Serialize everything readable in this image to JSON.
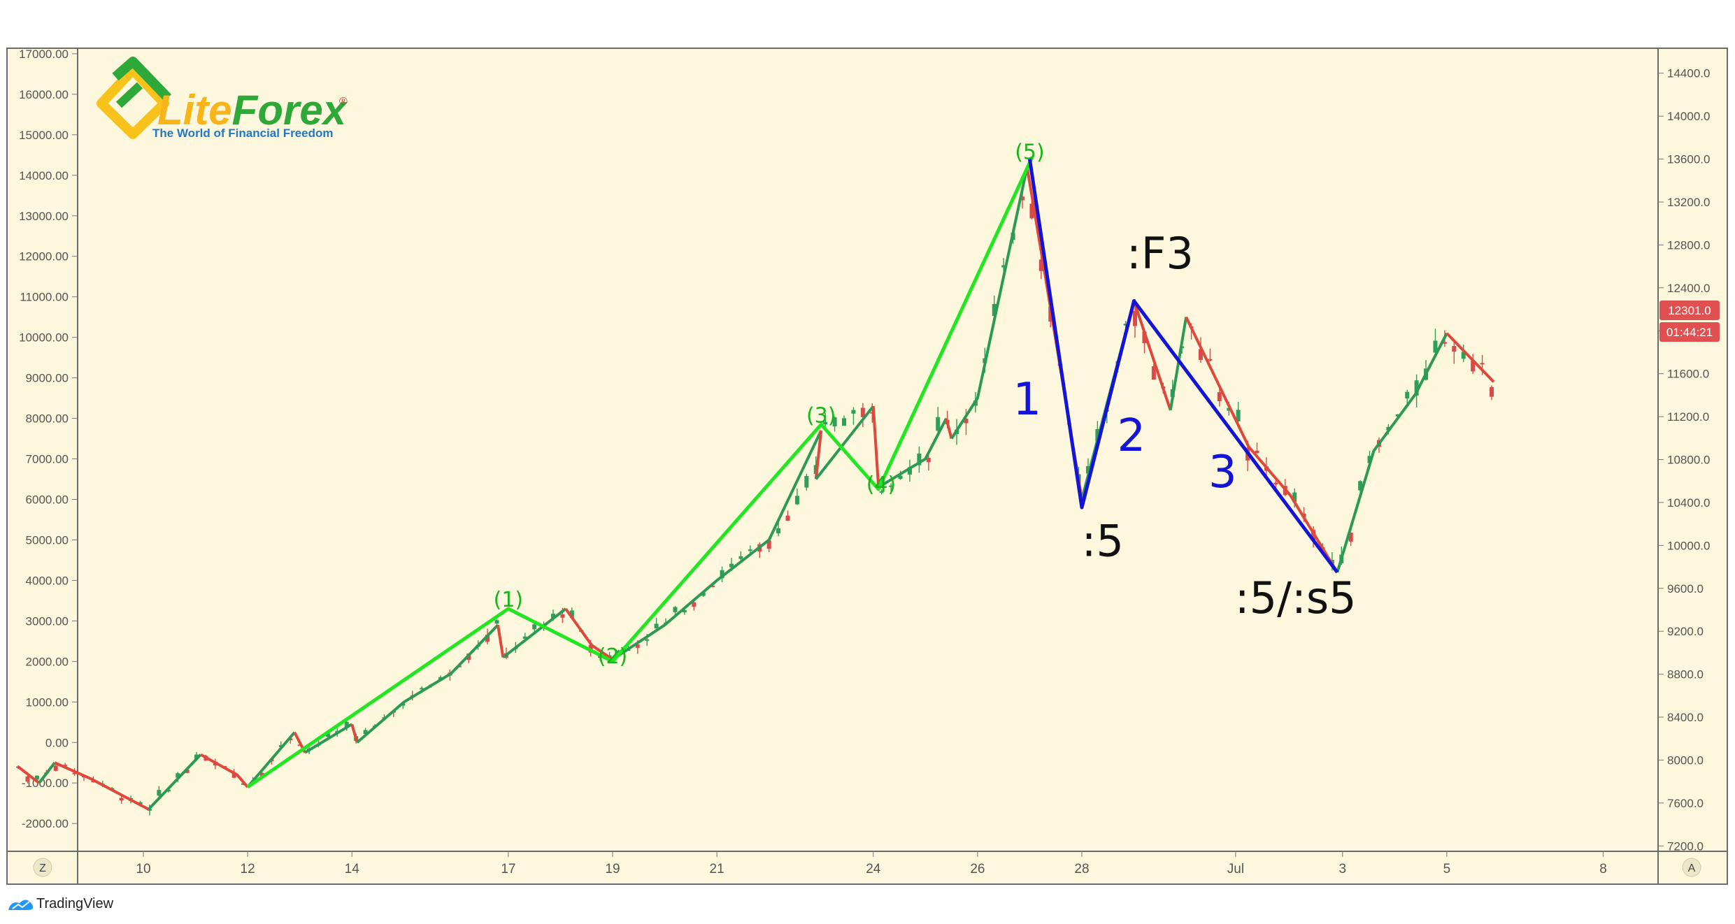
{
  "watermark": {
    "name": "LiteForex",
    "name_lite": "Lite",
    "name_forex": "Forex",
    "trademark": "®",
    "tagline": "The World of Financial Freedom"
  },
  "footer": {
    "brand": "TradingView"
  },
  "axis_buttons": {
    "left": "Z",
    "right": "A"
  },
  "price_boxes": {
    "last_price": "12301.0",
    "countdown": "01:44:21",
    "color": "#e05050"
  },
  "colors": {
    "background": "#fdf7dd",
    "up_candle": "#2e9e5a",
    "down_candle": "#d94b4b",
    "wave_bright": "#22e622",
    "wave_dark_green": "#2c9a56",
    "wave_red": "#e0483c",
    "wave_blue": "#1414d6"
  },
  "chart_data": {
    "type": "candlestick",
    "left_axis": {
      "ticks": [
        "17000.00",
        "16000.00",
        "15000.00",
        "14000.00",
        "13000.00",
        "12000.00",
        "11000.00",
        "10000.00",
        "9000.00",
        "8000.00",
        "7000.00",
        "6000.00",
        "5000.00",
        "4000.00",
        "3000.00",
        "2000.00",
        "1000.00",
        "0.00",
        "-1000.00",
        "-2000.00"
      ],
      "range": [
        -2100,
        17050
      ]
    },
    "right_axis": {
      "ticks": [
        "14400.0",
        "14000.0",
        "13600.0",
        "13200.0",
        "12800.0",
        "12400.0",
        "12000.0",
        "11600.0",
        "11200.0",
        "10800.0",
        "10400.0",
        "10000.0",
        "9600.0",
        "9200.0",
        "8800.0",
        "8400.0",
        "8000.0",
        "7600.0",
        "7200.0"
      ],
      "range": [
        7150,
        14600
      ]
    },
    "x_axis": {
      "ticks": [
        "10",
        "12",
        "14",
        "17",
        "19",
        "21",
        "24",
        "26",
        "28",
        "Jul",
        "3",
        "5",
        "8"
      ]
    },
    "wave_labels_green": [
      {
        "text": "(1)",
        "x": 17.0,
        "y": 3350
      },
      {
        "text": "(2)",
        "x": 19.0,
        "y": 1950
      },
      {
        "text": "(3)",
        "x": 23.0,
        "y": 7900
      },
      {
        "text": "(4)",
        "x": 24.15,
        "y": 6200
      },
      {
        "text": "(5)",
        "x": 27.0,
        "y": 14400
      }
    ],
    "wave_labels_blue": [
      {
        "text": "1",
        "x": 26.95,
        "y": 8100
      },
      {
        "text": "2",
        "x": 28.95,
        "y": 7200
      },
      {
        "text": "3",
        "x": 30.7,
        "y": 6300
      }
    ],
    "wave_labels_black": [
      {
        "text": ":F3",
        "x": 29.5,
        "y": 11700
      },
      {
        "text": ":5",
        "x": 28.4,
        "y": 4600
      },
      {
        "text": ":5/:s5",
        "x": 32.1,
        "y": 3200
      }
    ],
    "bright_green_waves": [
      [
        12.0,
        -1100
      ],
      [
        17.0,
        3300
      ],
      [
        19.0,
        2000
      ],
      [
        23.0,
        7850
      ],
      [
        24.1,
        6250
      ],
      [
        27.05,
        14450
      ]
    ],
    "blue_waves": [
      [
        27.0,
        14400
      ],
      [
        28.0,
        5800
      ],
      [
        29.0,
        10900
      ],
      [
        32.9,
        4200
      ]
    ],
    "minor_waves": [
      {
        "color": "red",
        "points": [
          [
            7.6,
            -600
          ],
          [
            8.0,
            -1000
          ]
        ]
      },
      {
        "color": "green",
        "points": [
          [
            8.0,
            -1000
          ],
          [
            8.3,
            -500
          ]
        ]
      },
      {
        "color": "red",
        "points": [
          [
            8.3,
            -500
          ],
          [
            9.0,
            -900
          ],
          [
            10.1,
            -1650
          ]
        ]
      },
      {
        "color": "green",
        "points": [
          [
            10.1,
            -1650
          ],
          [
            11.1,
            -300
          ]
        ]
      },
      {
        "color": "red",
        "points": [
          [
            11.1,
            -300
          ],
          [
            11.8,
            -800
          ],
          [
            12.0,
            -1100
          ]
        ]
      },
      {
        "color": "green",
        "points": [
          [
            12.0,
            -1100
          ],
          [
            12.9,
            250
          ]
        ]
      },
      {
        "color": "red",
        "points": [
          [
            12.9,
            250
          ],
          [
            13.1,
            -250
          ]
        ]
      },
      {
        "color": "green",
        "points": [
          [
            13.1,
            -250
          ],
          [
            14.0,
            450
          ]
        ]
      },
      {
        "color": "red",
        "points": [
          [
            14.0,
            450
          ],
          [
            14.1,
            0
          ]
        ]
      },
      {
        "color": "green",
        "points": [
          [
            14.1,
            0
          ],
          [
            15.0,
            1000
          ],
          [
            15.9,
            1700
          ],
          [
            16.8,
            2900
          ]
        ]
      },
      {
        "color": "red",
        "points": [
          [
            16.8,
            2900
          ],
          [
            16.9,
            2100
          ]
        ]
      },
      {
        "color": "green",
        "points": [
          [
            16.9,
            2100
          ],
          [
            18.1,
            3300
          ]
        ]
      },
      {
        "color": "red",
        "points": [
          [
            18.1,
            3300
          ],
          [
            18.6,
            2400
          ],
          [
            19.0,
            2050
          ]
        ]
      },
      {
        "color": "green",
        "points": [
          [
            19.0,
            2050
          ],
          [
            20.0,
            2900
          ],
          [
            21.0,
            4000
          ],
          [
            22.0,
            5000
          ],
          [
            23.0,
            7700
          ]
        ]
      },
      {
        "color": "red",
        "points": [
          [
            23.0,
            7700
          ],
          [
            22.9,
            6500
          ]
        ]
      },
      {
        "color": "green",
        "points": [
          [
            22.9,
            6500
          ],
          [
            24.0,
            8300
          ]
        ]
      },
      {
        "color": "red",
        "points": [
          [
            24.0,
            8300
          ],
          [
            24.1,
            6300
          ]
        ]
      },
      {
        "color": "green",
        "points": [
          [
            24.1,
            6300
          ],
          [
            25.0,
            7000
          ],
          [
            25.4,
            8000
          ]
        ]
      },
      {
        "color": "red",
        "points": [
          [
            25.4,
            8000
          ],
          [
            25.5,
            7500
          ]
        ]
      },
      {
        "color": "green",
        "points": [
          [
            25.5,
            7500
          ],
          [
            26.0,
            8500
          ],
          [
            26.95,
            14200
          ]
        ]
      },
      {
        "color": "red",
        "points": [
          [
            26.95,
            14200
          ],
          [
            27.3,
            11500
          ],
          [
            28.0,
            6000
          ]
        ]
      },
      {
        "color": "green",
        "points": [
          [
            28.0,
            6000
          ],
          [
            29.0,
            10900
          ]
        ]
      },
      {
        "color": "red",
        "points": [
          [
            29.0,
            10900
          ],
          [
            29.7,
            8200
          ]
        ]
      },
      {
        "color": "green",
        "points": [
          [
            29.7,
            8200
          ],
          [
            30.0,
            10500
          ]
        ]
      },
      {
        "color": "red",
        "points": [
          [
            30.0,
            10500
          ],
          [
            31.2,
            7300
          ],
          [
            32.0,
            6100
          ],
          [
            32.9,
            4200
          ]
        ]
      },
      {
        "color": "green",
        "points": [
          [
            32.9,
            4200
          ],
          [
            33.6,
            7200
          ],
          [
            34.4,
            8600
          ],
          [
            35.0,
            10100
          ]
        ]
      },
      {
        "color": "red",
        "points": [
          [
            35.0,
            10100
          ],
          [
            35.9,
            8900
          ]
        ]
      }
    ]
  }
}
